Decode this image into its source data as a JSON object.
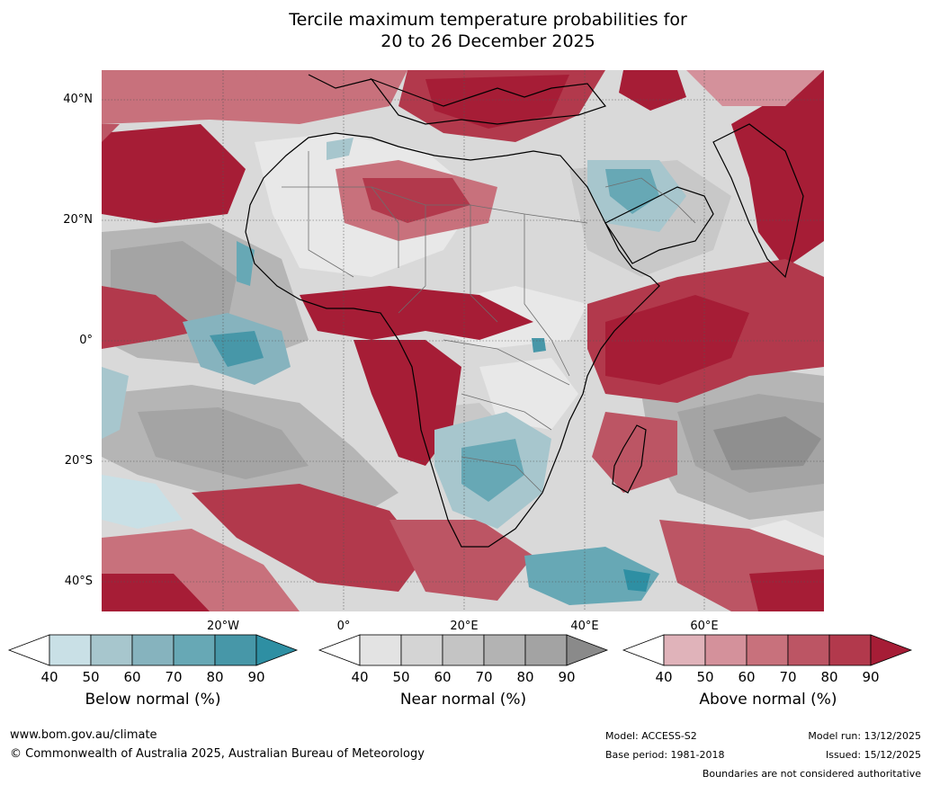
{
  "title": {
    "line1": "Tercile maximum temperature probabilities for",
    "line2": "20 to 26 December 2025"
  },
  "map": {
    "lat_labels": [
      "40°N",
      "20°N",
      "0°",
      "20°S",
      "40°S"
    ],
    "lon_labels": [
      "20°W",
      "0°",
      "20°E",
      "40°E",
      "60°E"
    ],
    "colors": {
      "above": [
        "#e0b3ba",
        "#d4919b",
        "#c8717c",
        "#bc5564",
        "#b2394c",
        "#a61d36"
      ],
      "near": [
        "#e8e8e8",
        "#d9d9d9",
        "#c8c8c8",
        "#b5b5b5",
        "#a4a4a4",
        "#8f8f8f"
      ],
      "below": [
        "#c9e0e6",
        "#a7c6cd",
        "#86b3be",
        "#67a8b5",
        "#4797a8",
        "#2e8fa3"
      ]
    }
  },
  "legends": [
    {
      "name": "below",
      "label": "Below normal (%)",
      "ticks": [
        "40",
        "50",
        "60",
        "70",
        "80",
        "90"
      ],
      "colors": [
        "#ffffff",
        "#c9e0e6",
        "#a7c6cd",
        "#86b3be",
        "#67a8b5",
        "#4797a8",
        "#2e8fa3"
      ]
    },
    {
      "name": "near",
      "label": "Near normal (%)",
      "ticks": [
        "40",
        "50",
        "60",
        "70",
        "80",
        "90"
      ],
      "colors": [
        "#ffffff",
        "#e3e3e3",
        "#d4d4d4",
        "#c4c4c4",
        "#b3b3b3",
        "#a3a3a3",
        "#8a8a8a"
      ]
    },
    {
      "name": "above",
      "label": "Above normal (%)",
      "ticks": [
        "40",
        "50",
        "60",
        "70",
        "80",
        "90"
      ],
      "colors": [
        "#ffffff",
        "#e0b3ba",
        "#d4919b",
        "#c8717c",
        "#bc5564",
        "#b2394c",
        "#a61d36"
      ]
    }
  ],
  "footer": {
    "website": "www.bom.gov.au/climate",
    "copyright": "© Commonwealth of Australia 2025, Australian Bureau of Meteorology",
    "model": "Model: ACCESS-S2",
    "base_period": "Base period: 1981-2018",
    "model_run": "Model run: 13/12/2025",
    "issued": "Issued: 15/12/2025",
    "disclaimer": "Boundaries are not considered authoritative"
  }
}
